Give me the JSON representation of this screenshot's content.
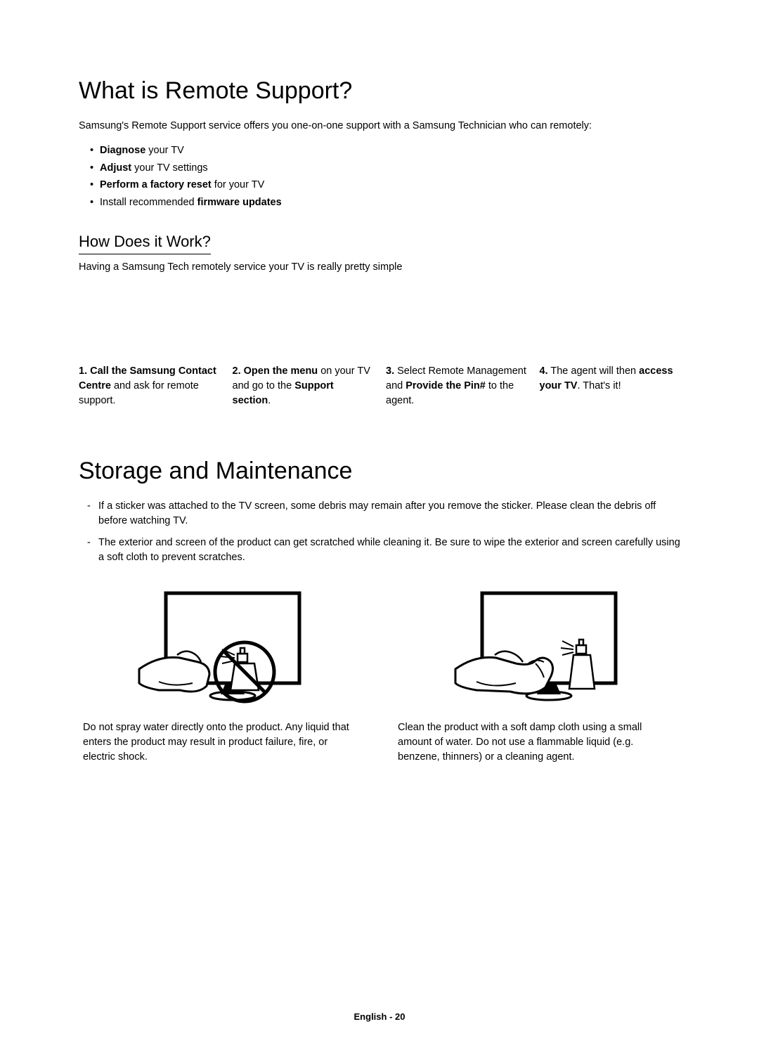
{
  "colors": {
    "text": "#000000",
    "background": "#ffffff",
    "stroke": "#000000",
    "fill_white": "#ffffff"
  },
  "typography": {
    "h1_fontsize": 34,
    "h2_fontsize": 22,
    "body_fontsize": 14.5,
    "footer_fontsize": 13,
    "font_family": "Arial, Helvetica, sans-serif"
  },
  "section1": {
    "title": "What is Remote Support?",
    "intro": "Samsung's Remote Support service offers you one-on-one support with a Samsung Technician who can remotely:",
    "bullets_html": [
      "<b>Diagnose</b> your TV",
      "<b>Adjust</b> your TV settings",
      "<b>Perform a factory reset</b> for your TV",
      "Install recommended <b>firmware updates</b>"
    ],
    "subheading": "How Does it Work?",
    "subtext": "Having a Samsung Tech remotely service your TV is really pretty simple",
    "steps_html": [
      "<b>Call the Samsung Contact Centre</b> and ask for remote support.",
      "<b>Open the menu</b> on your TV and go to the <b>Support section</b>.",
      "Select Remote Management and <b>Provide the Pin#</b> to the agent.",
      "The agent will then <b>access your TV</b>. That's it!"
    ],
    "step_numbers": [
      "1.",
      "2.",
      "3.",
      "4."
    ]
  },
  "section2": {
    "title": "Storage and Maintenance",
    "notes": [
      "If a sticker was attached to the TV screen, some debris may remain after you remove the sticker. Please clean the debris off before watching TV.",
      "The exterior and screen of the product can get scratched while cleaning it. Be sure to wipe the exterior and screen carefully using a soft cloth to prevent scratches."
    ],
    "illustrations": [
      {
        "type": "do-not-spray",
        "caption": "Do not spray water directly onto the product. Any liquid that enters the product may result in product failure, fire, or electric shock.",
        "prohibition": true
      },
      {
        "type": "clean-with-cloth",
        "caption": "Clean the product with a soft damp cloth using a small amount of water. Do not use a flammable liquid (e.g. benzene, thinners) or a cleaning agent.",
        "prohibition": false
      }
    ]
  },
  "footer": "English - 20"
}
